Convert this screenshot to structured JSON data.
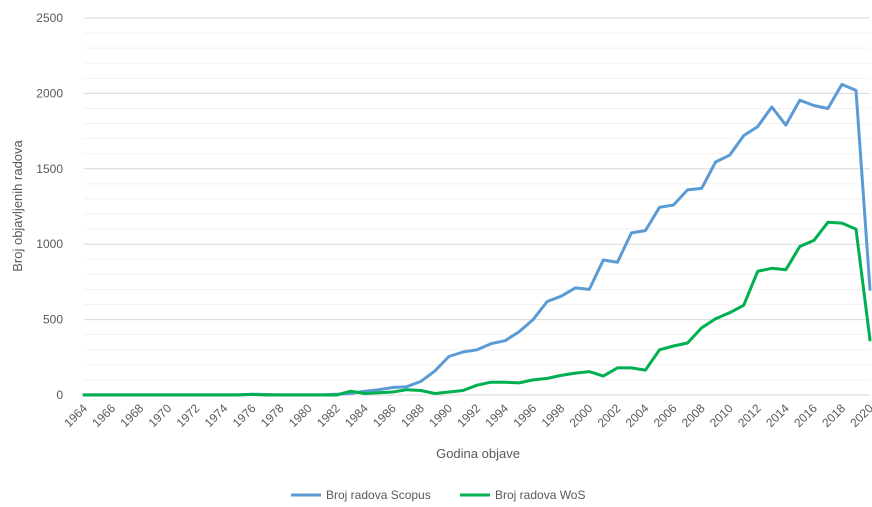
{
  "chart_data": {
    "type": "line",
    "title": "",
    "xlabel": "Godina objave",
    "ylabel": "Broj objavljenih radova",
    "ylim": [
      0,
      2500
    ],
    "y_ticks": [
      0,
      500,
      1000,
      1500,
      2000,
      2500
    ],
    "x_tick_labels": [
      "1964",
      "1966",
      "1968",
      "1970",
      "1972",
      "1974",
      "1976",
      "1978",
      "1980",
      "1982",
      "1984",
      "1986",
      "1988",
      "1990",
      "1992",
      "1994",
      "1996",
      "1998",
      "2000",
      "2002",
      "2004",
      "2006",
      "2008",
      "2010",
      "2012",
      "2014",
      "2016",
      "2018",
      "2020"
    ],
    "grid": true,
    "legend_position": "bottom",
    "x": [
      1964,
      1965,
      1966,
      1967,
      1968,
      1969,
      1970,
      1971,
      1972,
      1973,
      1974,
      1975,
      1976,
      1977,
      1978,
      1979,
      1980,
      1981,
      1982,
      1983,
      1984,
      1985,
      1986,
      1987,
      1988,
      1989,
      1990,
      1991,
      1992,
      1993,
      1994,
      1995,
      1996,
      1997,
      1998,
      1999,
      2000,
      2001,
      2002,
      2003,
      2004,
      2005,
      2006,
      2007,
      2008,
      2009,
      2010,
      2011,
      2012,
      2013,
      2014,
      2015,
      2016,
      2017,
      2018,
      2019,
      2020
    ],
    "series": [
      {
        "name": "Broj radova Scopus",
        "color": "#5b9bd5",
        "values": [
          2,
          2,
          2,
          2,
          2,
          2,
          2,
          2,
          2,
          2,
          2,
          2,
          5,
          3,
          2,
          2,
          2,
          2,
          5,
          10,
          25,
          35,
          50,
          55,
          90,
          160,
          255,
          285,
          300,
          340,
          360,
          420,
          500,
          620,
          655,
          710,
          700,
          895,
          880,
          1075,
          1090,
          1245,
          1260,
          1360,
          1370,
          1545,
          1590,
          1720,
          1780,
          1910,
          1790,
          1955,
          1920,
          1900,
          2060,
          2020,
          700
        ]
      },
      {
        "name": "Broj radova WoS",
        "color": "#00b050",
        "values": [
          0,
          0,
          0,
          0,
          0,
          0,
          0,
          0,
          0,
          0,
          0,
          0,
          4,
          0,
          0,
          0,
          0,
          0,
          0,
          25,
          10,
          15,
          20,
          35,
          30,
          10,
          20,
          30,
          65,
          85,
          85,
          80,
          100,
          110,
          130,
          145,
          155,
          125,
          180,
          180,
          165,
          300,
          325,
          345,
          445,
          505,
          545,
          595,
          820,
          840,
          830,
          985,
          1025,
          1145,
          1140,
          1100,
          365
        ]
      }
    ]
  }
}
